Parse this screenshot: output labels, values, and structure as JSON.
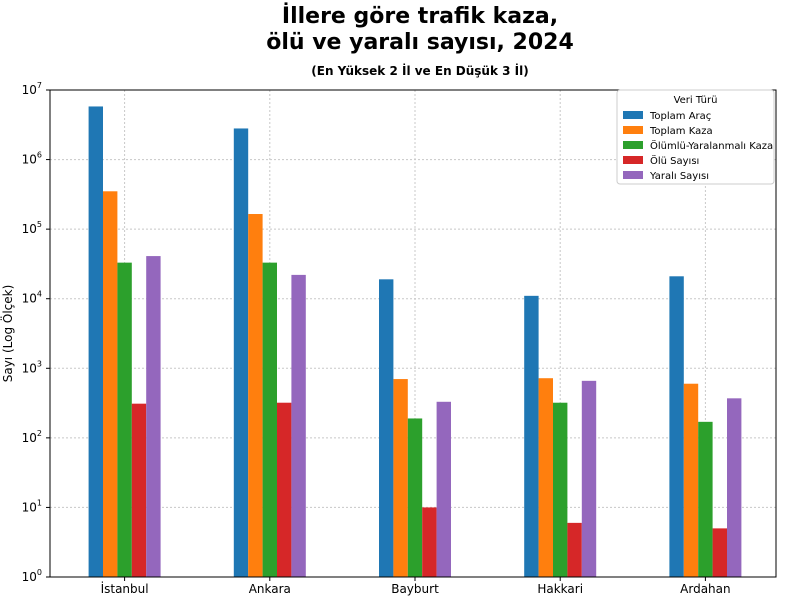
{
  "chart_data": {
    "type": "bar",
    "title_line1": "İllere göre trafik kaza,",
    "title_line2": "ölü ve yaralı sayısı, 2024",
    "subtitle": "(En Yüksek 2 İl ve En Düşük 3 İl)",
    "xlabel": "",
    "ylabel": "Sayı (Log Ölçek)",
    "yscale": "log",
    "ylim": [
      1,
      10000000
    ],
    "grid": true,
    "legend_title": "Veri Türü",
    "legend_position": "top-right",
    "categories": [
      "İstanbul",
      "Ankara",
      "Bayburt",
      "Hakkari",
      "Ardahan"
    ],
    "series": [
      {
        "name": "Toplam Araç",
        "color": "#1f77b4",
        "values": [
          5800000,
          2800000,
          19000,
          11000,
          21000
        ]
      },
      {
        "name": "Toplam Kaza",
        "color": "#ff7f0e",
        "values": [
          350000,
          165000,
          700,
          720,
          600
        ]
      },
      {
        "name": "Ölümlü-Yaralanmalı Kaza",
        "color": "#2ca02c",
        "values": [
          33000,
          33000,
          190,
          320,
          170
        ]
      },
      {
        "name": "Ölü Sayısı",
        "color": "#d62728",
        "values": [
          310,
          320,
          10,
          6,
          5
        ]
      },
      {
        "name": "Yaralı Sayısı",
        "color": "#9467bd",
        "values": [
          41000,
          22000,
          330,
          660,
          370
        ]
      }
    ],
    "y_ticks": [
      {
        "value": 1,
        "base": "10",
        "exp": "0"
      },
      {
        "value": 10,
        "base": "10",
        "exp": "1"
      },
      {
        "value": 100,
        "base": "10",
        "exp": "2"
      },
      {
        "value": 1000,
        "base": "10",
        "exp": "3"
      },
      {
        "value": 10000,
        "base": "10",
        "exp": "4"
      },
      {
        "value": 100000,
        "base": "10",
        "exp": "5"
      },
      {
        "value": 1000000,
        "base": "10",
        "exp": "6"
      },
      {
        "value": 10000000,
        "base": "10",
        "exp": "7"
      }
    ]
  }
}
